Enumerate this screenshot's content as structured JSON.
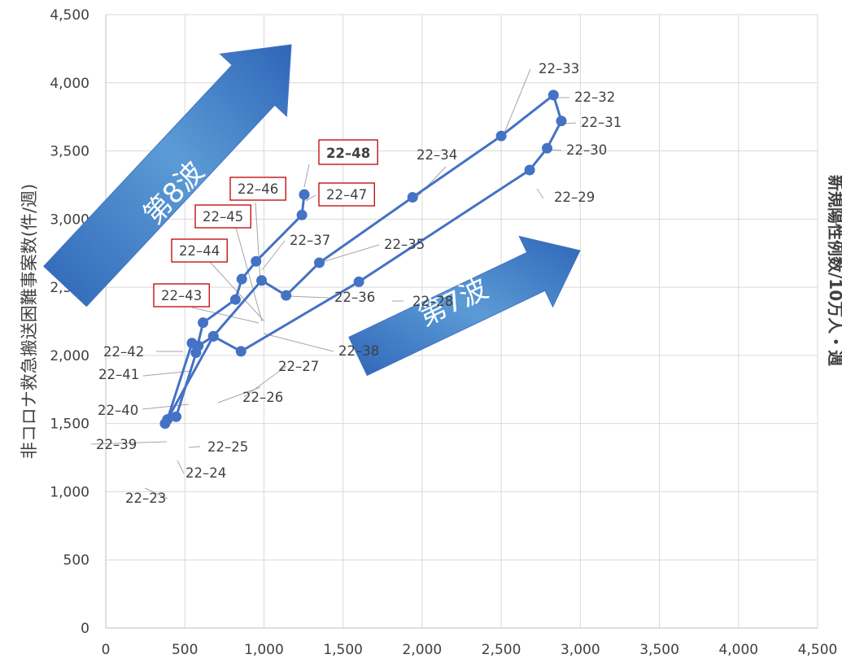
{
  "chart_data": {
    "type": "scatter",
    "ylabel": "非コロナ救急搬送困難事案数(件/週)",
    "y2label": "新規陽性例数/10万人・週",
    "xlim": [
      0,
      4500
    ],
    "ylim": [
      0,
      4500
    ],
    "xticks": [
      "0",
      "500",
      "1,000",
      "1,500",
      "2,000",
      "2,500",
      "3,000",
      "3,500",
      "4,000",
      "4,500"
    ],
    "yticks": [
      "0",
      "500",
      "1,000",
      "1,500",
      "2,000",
      "2,500",
      "3,000",
      "3,500",
      "4,000",
      "4,500"
    ],
    "grid": true,
    "line_color": "#4472c4",
    "highlight_color": "#ff0000",
    "box_color": "#c00000",
    "points": [
      {
        "label": "22–23",
        "x": 375,
        "y": 1500
      },
      {
        "label": "22–24",
        "x": 445,
        "y": 1550
      },
      {
        "label": "22–25",
        "x": 585,
        "y": 2070
      },
      {
        "label": "22–26",
        "x": 680,
        "y": 2140
      },
      {
        "label": "22–27",
        "x": 855,
        "y": 2030
      },
      {
        "label": "22–28",
        "x": 1600,
        "y": 2540
      },
      {
        "label": "22–29",
        "x": 2680,
        "y": 3360
      },
      {
        "label": "22–30",
        "x": 2790,
        "y": 3520
      },
      {
        "label": "22–31",
        "x": 2880,
        "y": 3720
      },
      {
        "label": "22–32",
        "x": 2830,
        "y": 3910
      },
      {
        "label": "22–33",
        "x": 2500,
        "y": 3610
      },
      {
        "label": "22–34",
        "x": 1940,
        "y": 3160
      },
      {
        "label": "22–35",
        "x": 1350,
        "y": 2680
      },
      {
        "label": "22–36",
        "x": 1140,
        "y": 2440
      },
      {
        "label": "22–37",
        "x": 985,
        "y": 2550
      },
      {
        "label": "22–38",
        "x": 680,
        "y": 2140
      },
      {
        "label": "22–39",
        "x": 390,
        "y": 1530
      },
      {
        "label": "22–40",
        "x": 545,
        "y": 2090
      },
      {
        "label": "22–41",
        "x": 570,
        "y": 2020
      },
      {
        "label": "22–42",
        "x": 615,
        "y": 2240
      },
      {
        "label": "22–43",
        "x": 820,
        "y": 2410
      },
      {
        "label": "22–44",
        "x": 860,
        "y": 2560
      },
      {
        "label": "22–45",
        "x": 950,
        "y": 2690
      },
      {
        "label": "22–46",
        "x": 1240,
        "y": 3030
      },
      {
        "label": "22–47",
        "x": 1255,
        "y": 3180
      },
      {
        "label": "22–48",
        "x": 1255,
        "y": 3180
      }
    ],
    "annotations": [
      {
        "text": "第8波"
      },
      {
        "text": "第7波"
      }
    ]
  }
}
